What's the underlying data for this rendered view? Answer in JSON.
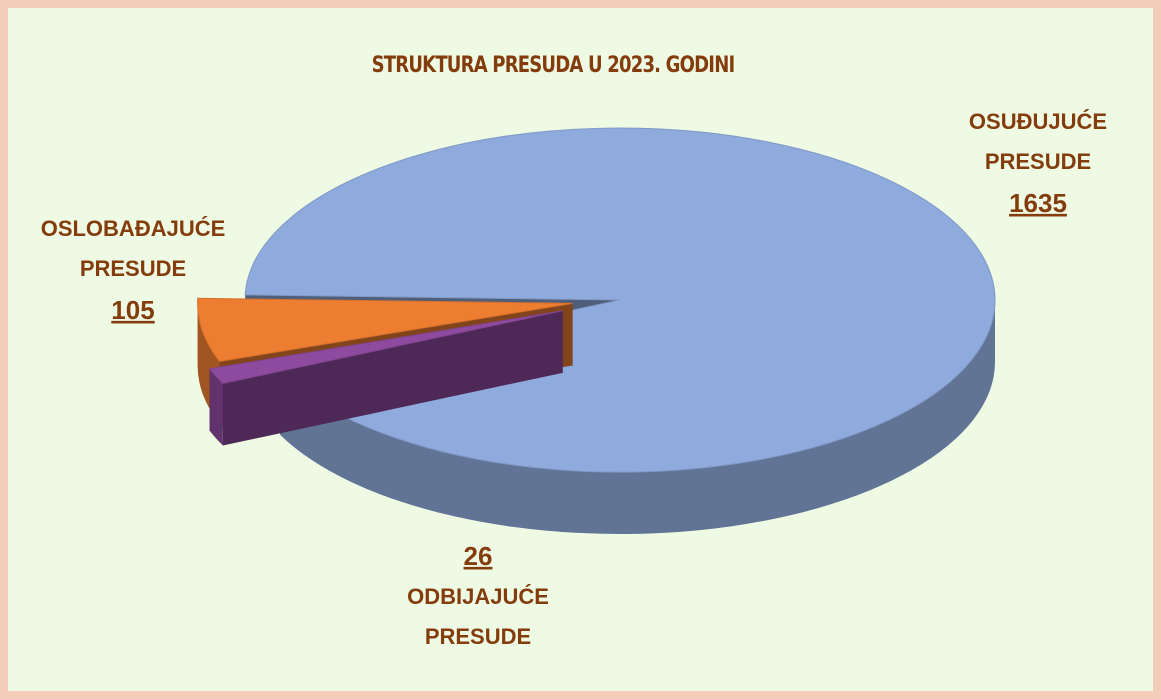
{
  "chart_data": {
    "type": "pie3d",
    "title": "STRUKTURA PRESUDA U 2023. GODINI",
    "categories": [
      "OSUĐUJUĆE PRESUDE",
      "OSLOBAĐAJUĆE PRESUDE",
      "ODBIJAJUĆE PRESUDE"
    ],
    "values": [
      1635,
      105,
      26
    ],
    "colors": [
      "#8faadc",
      "#ed7d31",
      "#8e4a9f"
    ]
  }
}
